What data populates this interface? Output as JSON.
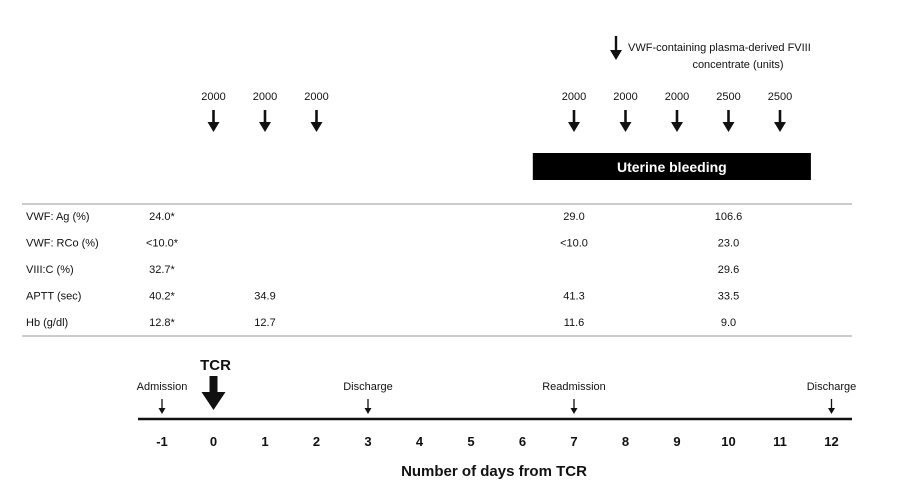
{
  "legend": {
    "line1": "VWF-containing plasma-derived  FVIII",
    "line2": "concentrate  (units)",
    "icon": "arrow-down-icon"
  },
  "doses": [
    {
      "day": 0,
      "units": "2000"
    },
    {
      "day": 1,
      "units": "2000"
    },
    {
      "day": 2,
      "units": "2000"
    },
    {
      "day": 7,
      "units": "2000"
    },
    {
      "day": 8,
      "units": "2000"
    },
    {
      "day": 9,
      "units": "2000"
    },
    {
      "day": 10,
      "units": "2500"
    },
    {
      "day": 11,
      "units": "2500"
    }
  ],
  "bleeding_bar": {
    "label": "Uterine bleeding",
    "start_day": 6.2,
    "end_day": 11.6
  },
  "lab_table": {
    "rows": [
      {
        "label": "VWF: Ag (%)",
        "values": [
          {
            "day": -1,
            "text": "24.0*"
          },
          {
            "day": 7,
            "text": "29.0"
          },
          {
            "day": 10,
            "text": "106.6"
          }
        ]
      },
      {
        "label": "VWF: RCo (%)",
        "values": [
          {
            "day": -1,
            "text": "<10.0*"
          },
          {
            "day": 7,
            "text": "<10.0"
          },
          {
            "day": 10,
            "text": "23.0"
          }
        ]
      },
      {
        "label": "VIII:C (%)",
        "values": [
          {
            "day": -1,
            "text": "32.7*"
          },
          {
            "day": 10,
            "text": "29.6"
          }
        ]
      },
      {
        "label": "APTT (sec)",
        "values": [
          {
            "day": -1,
            "text": "40.2*"
          },
          {
            "day": 1,
            "text": "34.9"
          },
          {
            "day": 7,
            "text": "41.3"
          },
          {
            "day": 10,
            "text": "33.5"
          }
        ]
      },
      {
        "label": "Hb (g/dl)",
        "values": [
          {
            "day": -1,
            "text": "12.8*"
          },
          {
            "day": 1,
            "text": "12.7"
          },
          {
            "day": 7,
            "text": "11.6"
          },
          {
            "day": 10,
            "text": "9.0"
          }
        ]
      }
    ]
  },
  "events": [
    {
      "day": -1,
      "label": "Admission"
    },
    {
      "day": 0,
      "label": "TCR",
      "major": true
    },
    {
      "day": 3,
      "label": "Discharge"
    },
    {
      "day": 7,
      "label": "Readmission"
    },
    {
      "day": 12,
      "label": "Discharge"
    }
  ],
  "axis": {
    "ticks": [
      "-1",
      "0",
      "1",
      "2",
      "3",
      "4",
      "5",
      "6",
      "7",
      "8",
      "9",
      "10",
      "11",
      "12"
    ],
    "range": [
      -1,
      12
    ],
    "label": "Number of days from TCR"
  },
  "colors": {
    "ink": "#111111",
    "rule": "#999999",
    "bar": "#000000",
    "bar_text": "#ffffff"
  }
}
